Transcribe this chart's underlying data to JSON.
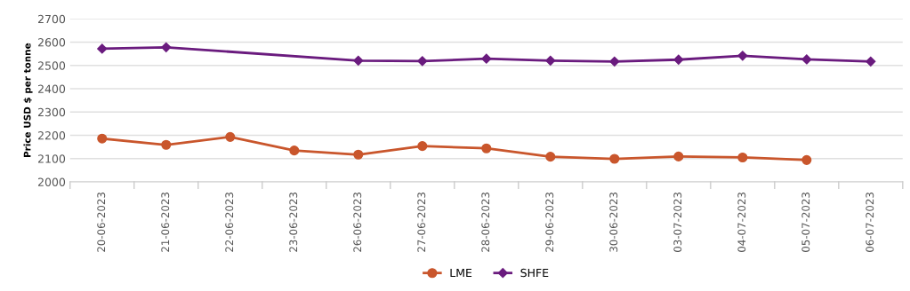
{
  "chart_data": {
    "type": "line",
    "ylabel": "Price USD $ per tonne",
    "categories": [
      "20-06-2023",
      "21-06-2023",
      "22-06-2023",
      "23-06-2023",
      "26-06-2023",
      "27-06-2023",
      "28-06-2023",
      "29-06-2023",
      "30-06-2023",
      "03-07-2023",
      "04-07-2023",
      "05-07-2023",
      "06-07-2023"
    ],
    "series": [
      {
        "name": "LME",
        "color": "#c9562c",
        "marker": "circle",
        "values": [
          2186,
          2159,
          2193,
          2135,
          2117,
          2154,
          2144,
          2108,
          2099,
          2109,
          2105,
          2094,
          null
        ]
      },
      {
        "name": "SHFE",
        "color": "#6a1b7e",
        "marker": "diamond",
        "values": [
          2572,
          2578,
          null,
          null,
          2521,
          2519,
          2529,
          2521,
          2517,
          2525,
          2542,
          2526,
          2517
        ]
      }
    ],
    "ylim": [
      2000,
      2700
    ],
    "yticks": [
      2000,
      2100,
      2200,
      2300,
      2400,
      2500,
      2600,
      2700
    ],
    "grid": "y",
    "legend": "bottom"
  }
}
